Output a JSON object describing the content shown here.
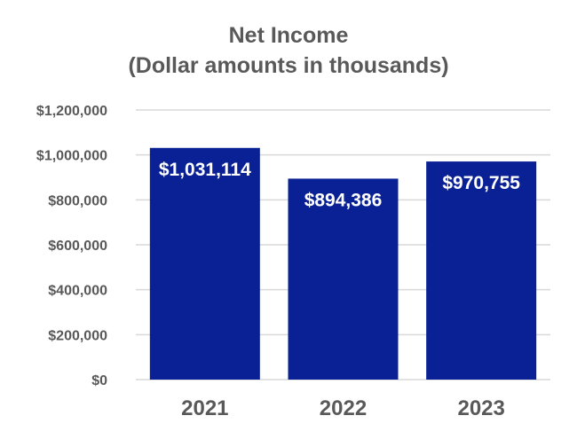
{
  "chart_data": {
    "type": "bar",
    "title_lines": [
      "Net Income",
      "(Dollar amounts in thousands)"
    ],
    "categories": [
      "2021",
      "2022",
      "2023"
    ],
    "values": [
      1031114,
      894386,
      970755
    ],
    "data_labels": [
      "$1,031,114",
      "$894,386",
      "$970,755"
    ],
    "ylim": [
      0,
      1200000
    ],
    "yticks": [
      0,
      200000,
      400000,
      600000,
      800000,
      1000000,
      1200000
    ],
    "ytick_labels": [
      "$0",
      "$200,000",
      "$400,000",
      "$600,000",
      "$800,000",
      "$1,000,000",
      "$1,200,000"
    ],
    "grid": true,
    "legend": "none",
    "bar_color": "#0a2196",
    "grid_color": "#d9d9d9",
    "text_color": "#595959",
    "label_color": "#ffffff"
  }
}
